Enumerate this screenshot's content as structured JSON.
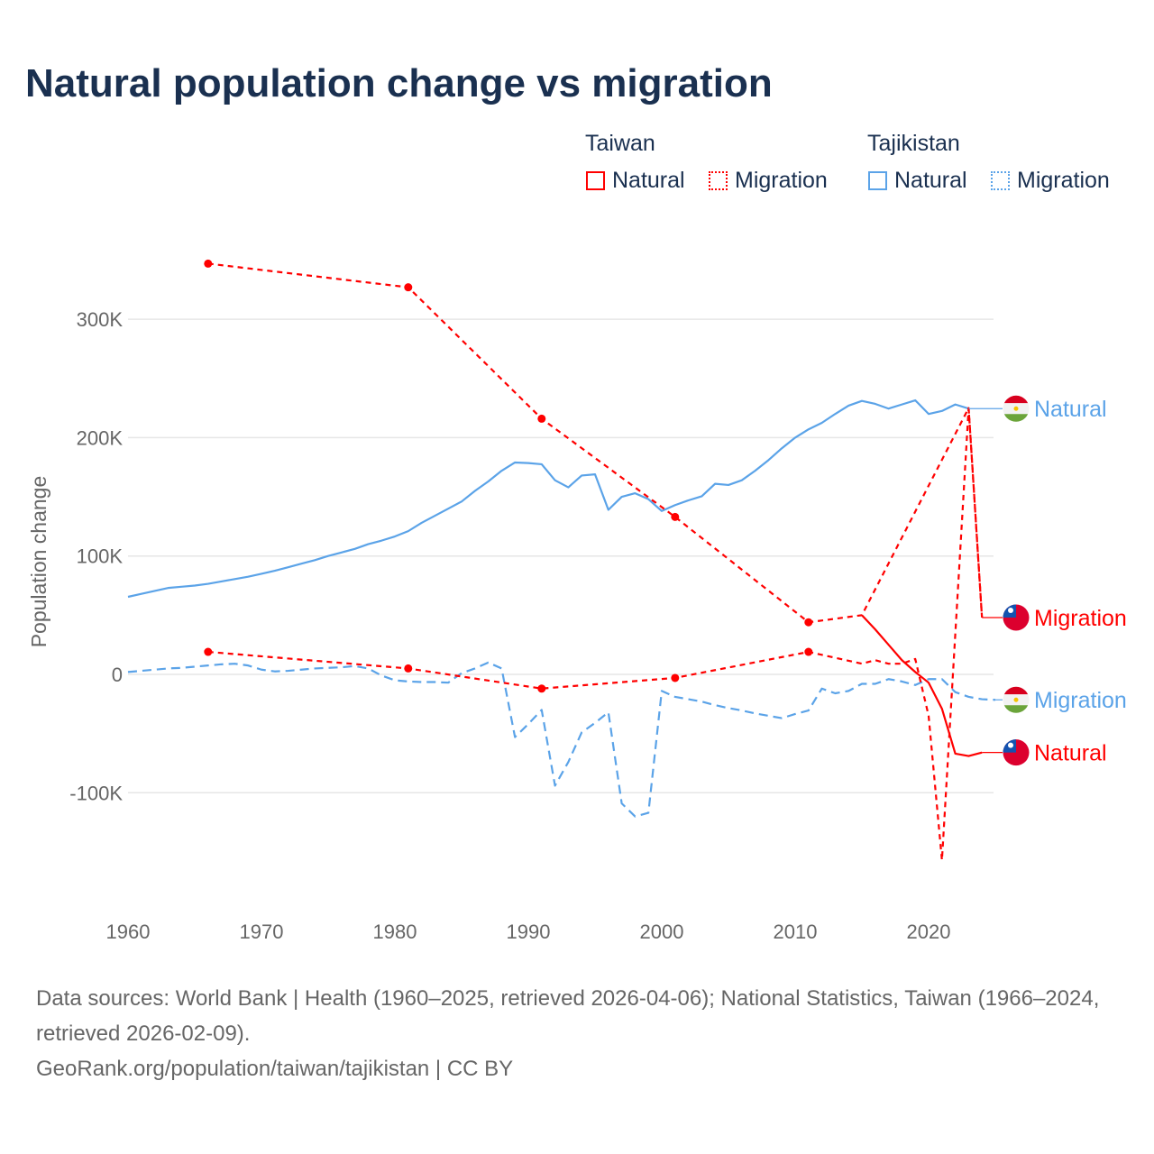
{
  "title": "Natural population change vs migration",
  "legend": {
    "groups": [
      {
        "country": "Taiwan",
        "items": [
          {
            "label": "Natural",
            "style": "solid"
          },
          {
            "label": "Migration",
            "style": "dotted"
          }
        ],
        "color": "#ff0000"
      },
      {
        "country": "Tajikistan",
        "items": [
          {
            "label": "Natural",
            "style": "solid"
          },
          {
            "label": "Migration",
            "style": "dotted"
          }
        ],
        "color": "#5ba3e8"
      }
    ]
  },
  "chart_data": {
    "type": "line",
    "title": "Natural population change vs migration",
    "xlabel": "",
    "ylabel": "Population change",
    "xlim": [
      1960,
      2025
    ],
    "ylim": [
      -150000,
      350000
    ],
    "x_ticks": [
      1960,
      1970,
      1980,
      1990,
      2000,
      2010,
      2020
    ],
    "y_ticks": [
      {
        "v": 300000,
        "label": "300K"
      },
      {
        "v": 200000,
        "label": "200K"
      },
      {
        "v": 100000,
        "label": "100K"
      },
      {
        "v": 0,
        "label": "0"
      },
      {
        "v": -100000,
        "label": "-100K"
      }
    ],
    "grid": true,
    "series": [
      {
        "name": "Tajikistan Natural",
        "end_label": "Natural",
        "color": "#5ba3e8",
        "flag": "tajikistan",
        "dash": "none",
        "x": [
          1960,
          1961,
          1962,
          1963,
          1964,
          1965,
          1966,
          1967,
          1968,
          1969,
          1970,
          1971,
          1972,
          1973,
          1974,
          1975,
          1976,
          1977,
          1978,
          1979,
          1980,
          1981,
          1982,
          1983,
          1984,
          1985,
          1986,
          1987,
          1988,
          1989,
          1990,
          1991,
          1992,
          1993,
          1994,
          1995,
          1996,
          1997,
          1998,
          1999,
          2000,
          2001,
          2002,
          2003,
          2004,
          2005,
          2006,
          2007,
          2008,
          2009,
          2010,
          2011,
          2012,
          2013,
          2014,
          2015,
          2016,
          2017,
          2018,
          2019,
          2020,
          2021,
          2022,
          2023
        ],
        "y": [
          65500,
          68000,
          70500,
          73000,
          74000,
          75000,
          76500,
          78500,
          80500,
          82500,
          85000,
          87500,
          90500,
          93500,
          96500,
          100000,
          103000,
          106000,
          110000,
          113000,
          116500,
          121000,
          128000,
          134000,
          140000,
          146000,
          155000,
          163000,
          172000,
          179000,
          178500,
          177500,
          164000,
          158000,
          168000,
          169000,
          139000,
          150000,
          153000,
          148000,
          138000,
          143000,
          147000,
          150500,
          161000,
          160000,
          164000,
          172000,
          181000,
          191000,
          200000,
          207000,
          212500,
          220000,
          227000,
          231000,
          228500,
          224500,
          228000,
          231500,
          220000,
          222500,
          228000,
          224500
        ],
        "markers": []
      },
      {
        "name": "Tajikistan Migration",
        "end_label": "Migration",
        "color": "#5ba3e8",
        "flag": "tajikistan",
        "dash": "10 6",
        "x": [
          1960,
          1961,
          1962,
          1963,
          1964,
          1965,
          1966,
          1967,
          1968,
          1969,
          1970,
          1971,
          1972,
          1973,
          1974,
          1975,
          1976,
          1977,
          1978,
          1979,
          1980,
          1981,
          1982,
          1983,
          1984,
          1985,
          1986,
          1987,
          1988,
          1989,
          1990,
          1991,
          1992,
          1993,
          1994,
          1995,
          1996,
          1997,
          1998,
          1999,
          2000,
          2001,
          2002,
          2003,
          2004,
          2005,
          2006,
          2007,
          2008,
          2009,
          2010,
          2011,
          2012,
          2013,
          2014,
          2015,
          2016,
          2017,
          2018,
          2019,
          2020,
          2021,
          2022,
          2023,
          2024,
          2025
        ],
        "y": [
          2000,
          3000,
          4000,
          5000,
          5500,
          6500,
          7500,
          8500,
          9000,
          7500,
          4000,
          2500,
          3000,
          4000,
          5000,
          5500,
          6000,
          7000,
          5000,
          -1000,
          -5000,
          -6000,
          -6500,
          -6500,
          -7000,
          1000,
          5000,
          10000,
          5000,
          -53000,
          -42000,
          -30000,
          -94000,
          -74000,
          -49000,
          -41000,
          -32000,
          -109000,
          -120000,
          -117000,
          -14000,
          -19000,
          -21000,
          -23000,
          -26000,
          -28500,
          -30500,
          -33000,
          -35000,
          -37000,
          -33500,
          -30500,
          -12000,
          -16000,
          -14000,
          -8000,
          -8000,
          -4000,
          -6000,
          -9000,
          -4000,
          -4000,
          -15000,
          -19000,
          -21000,
          -21500
        ],
        "markers": []
      },
      {
        "name": "Taiwan Migration",
        "end_label": "Migration",
        "color": "#ff0000",
        "flag": "taiwan",
        "dash": "6 5",
        "x": [
          1966,
          1981,
          1991,
          2001,
          2011,
          2015,
          2023,
          2024
        ],
        "y": [
          347000,
          327000,
          216000,
          133000,
          44000,
          50000,
          225000,
          48000
        ],
        "markers": [
          1966,
          1981,
          1991,
          2001,
          2011
        ]
      },
      {
        "name": "Taiwan Natural",
        "end_label": "Natural",
        "color": "#ff0000",
        "flag": "taiwan",
        "dash": "6 5",
        "solid_from": 2015,
        "x": [
          1966,
          1981,
          1991,
          2001,
          2011,
          2015,
          2016,
          2017,
          2018,
          2019,
          2020,
          2021,
          2022,
          2023,
          2024
        ],
        "y": [
          19000,
          5000,
          -12000,
          -3000,
          19000,
          9000,
          12000,
          9000,
          9000,
          13000,
          -35000,
          -157000,
          34000,
          225000,
          48000
        ],
        "markers": [
          1966,
          1981,
          1991,
          2001,
          2011
        ]
      },
      {
        "name": "Taiwan Natural recent",
        "end_label": "Natural",
        "color": "#ff0000",
        "flag": "taiwan",
        "dash": "none",
        "x": [
          2015,
          2016,
          2017,
          2018,
          2019,
          2020,
          2021,
          2022,
          2023,
          2024
        ],
        "y": [
          50000,
          38000,
          25000,
          12000,
          2000,
          -7000,
          -29000,
          -67000,
          -69000,
          -66000
        ],
        "markers": []
      }
    ]
  },
  "footer": {
    "sources": "Data sources: World Bank | Health (1960–2025, retrieved 2026-04-06); National Statistics, Taiwan (1966–2024, retrieved 2026-02-09).",
    "link": "GeoRank.org/population/taiwan/tajikistan | CC BY"
  }
}
